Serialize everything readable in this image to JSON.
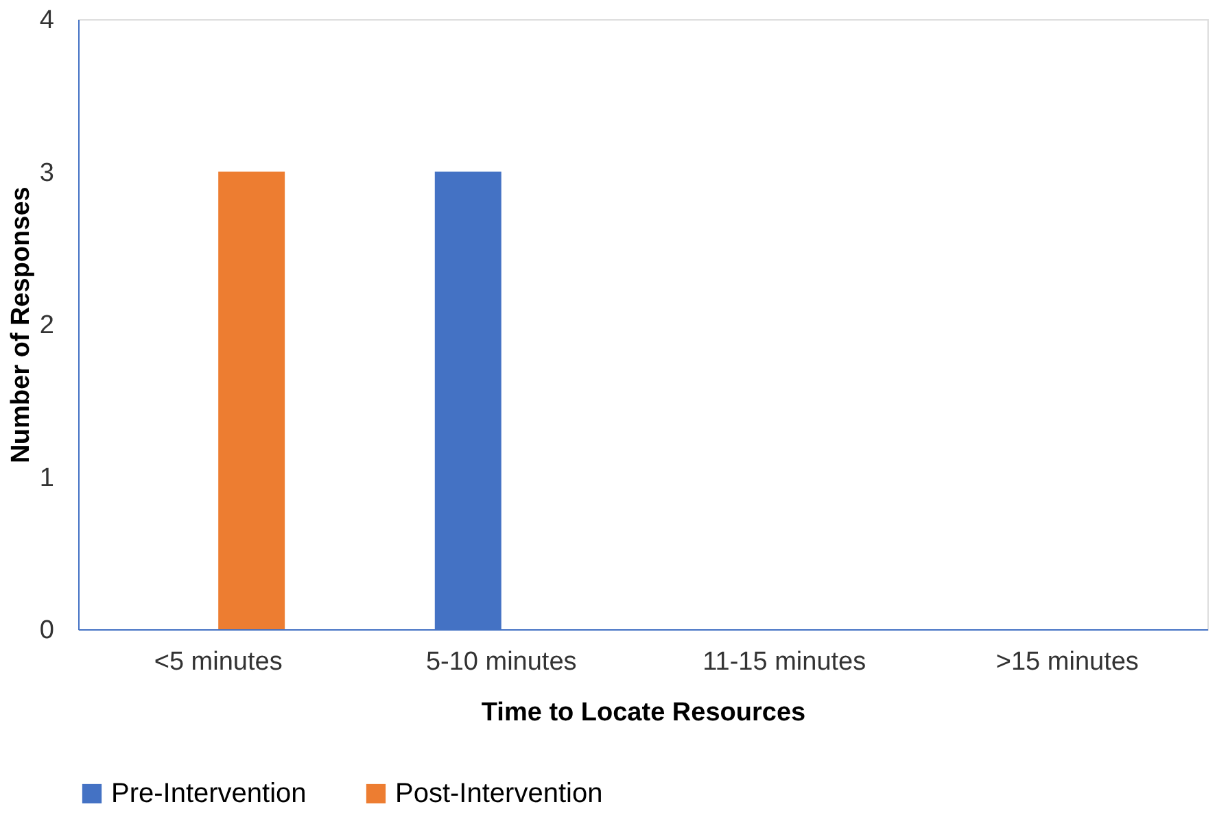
{
  "chart_data": {
    "type": "bar",
    "xlabel": "Time to Locate Resources",
    "ylabel": "Number of Responses",
    "categories": [
      "<5 minutes",
      "5-10 minutes",
      "11-15 minutes",
      ">15 minutes"
    ],
    "series": [
      {
        "name": "Pre-Intervention",
        "color": "#4472c4",
        "values": [
          0,
          3,
          0,
          0
        ]
      },
      {
        "name": "Post-Intervention",
        "color": "#ed7d31",
        "values": [
          3,
          0,
          0,
          0
        ]
      }
    ],
    "ylim": [
      0,
      4
    ],
    "yticks": [
      0,
      1,
      2,
      3,
      4
    ],
    "grid": false,
    "legend": "bottom"
  }
}
